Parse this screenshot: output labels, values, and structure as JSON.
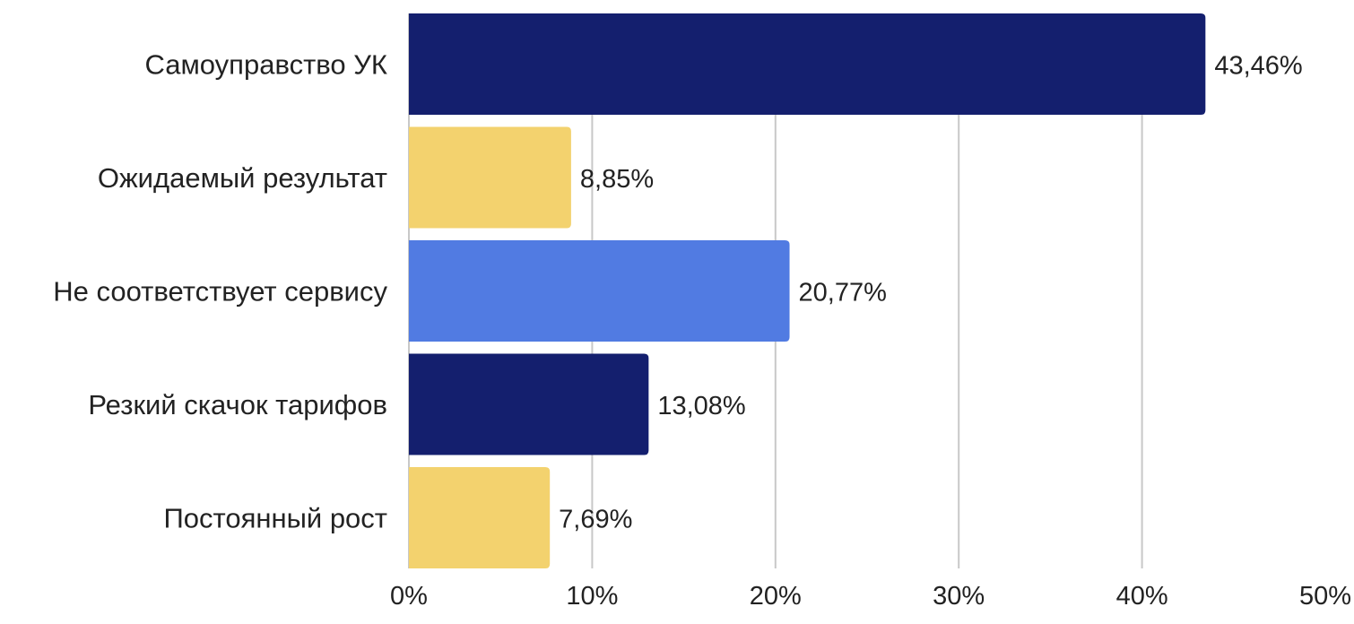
{
  "chart_data": {
    "type": "bar",
    "orientation": "horizontal",
    "categories": [
      "Самоуправство УК",
      "Ожидаемый результат",
      "Не соответствует сервису",
      "Резкий скачок тарифов",
      "Постоянный рост"
    ],
    "values": [
      43.46,
      8.85,
      20.77,
      13.08,
      7.69
    ],
    "value_labels": [
      "43,46%",
      "8,85%",
      "20,77%",
      "13,08%",
      "7,69%"
    ],
    "bar_colors": [
      "#141f6e",
      "#f3d26e",
      "#517be2",
      "#141f6e",
      "#f3d26e"
    ],
    "x_ticks": [
      0,
      10,
      20,
      30,
      40,
      50
    ],
    "x_tick_labels": [
      "0%",
      "10%",
      "20%",
      "30%",
      "40%",
      "50%"
    ],
    "xlim": [
      0,
      50
    ],
    "grid": "vertical",
    "legend": "none",
    "title": "",
    "xlabel": "",
    "ylabel": ""
  }
}
